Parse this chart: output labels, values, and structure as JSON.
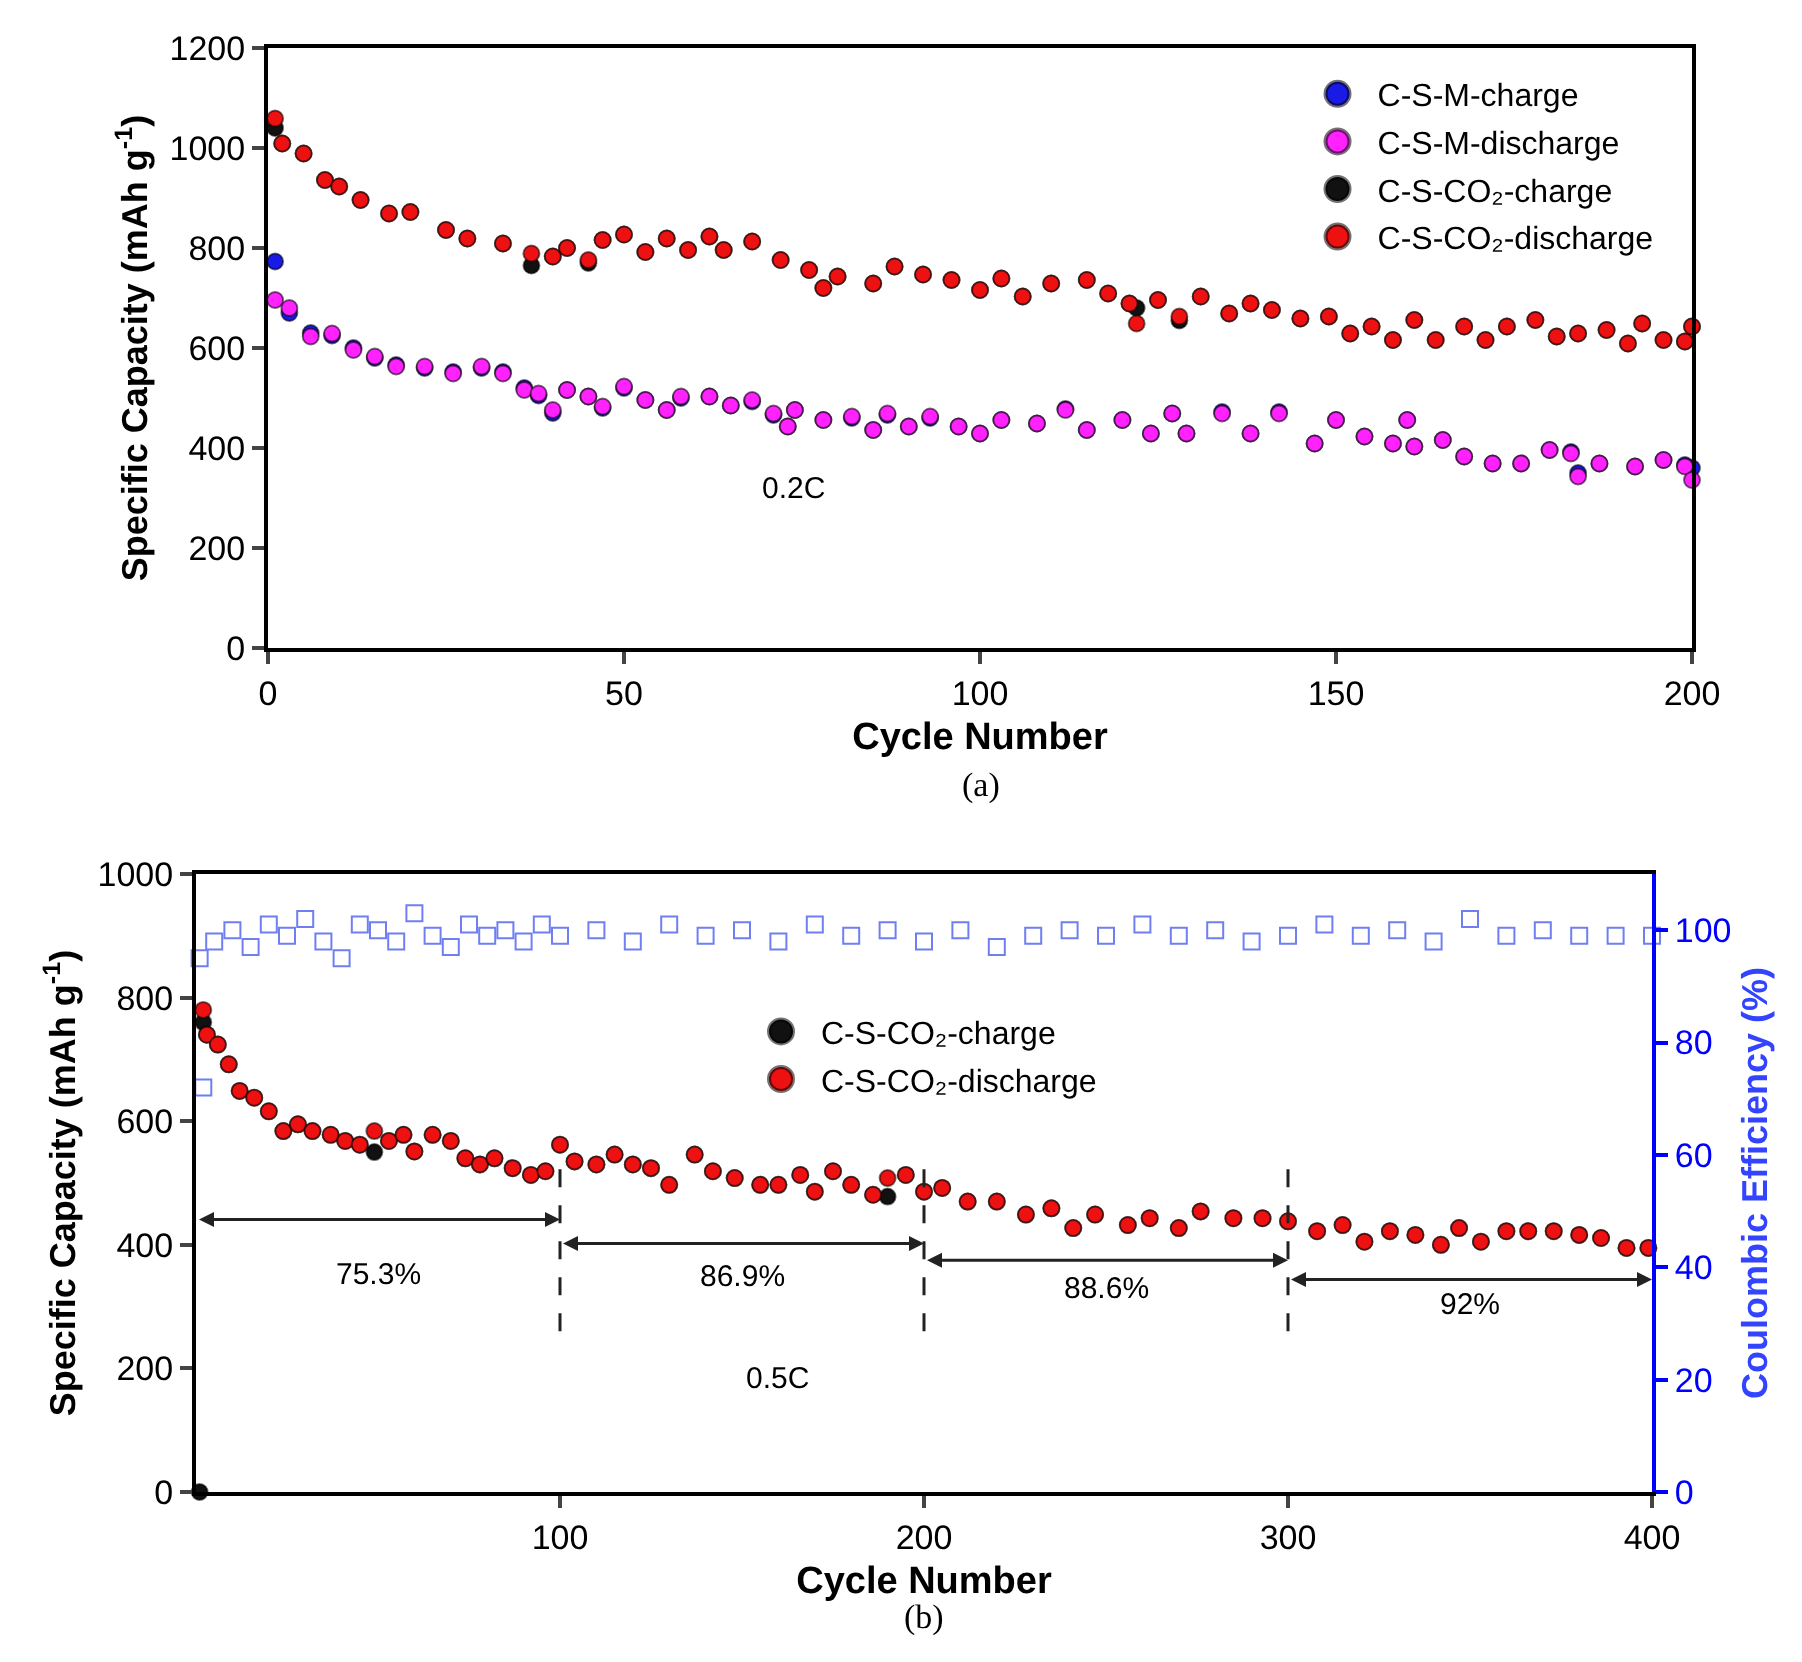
{
  "chart_data": [
    {
      "type": "scatter",
      "xlabel": "Cycle Number",
      "ylabel": "Specific Capacity (mAh g$^{-1}$)",
      "xlim": [
        0,
        200
      ],
      "xticks": [
        0,
        50,
        100,
        150,
        200
      ],
      "ylim": [
        0,
        1200
      ],
      "yticks": [
        0,
        200,
        400,
        600,
        800,
        1000,
        1200
      ],
      "grid": false,
      "legend": "top right",
      "marker": "circle",
      "annotations": [
        "0.2C",
        "(a)"
      ],
      "series": [
        {
          "name": "C-S-M-charge",
          "color": "#1a1ae6",
          "x": [
            1,
            3,
            6,
            9,
            12,
            15,
            18,
            22,
            26,
            30,
            33,
            36,
            38,
            40,
            42,
            45,
            47,
            50,
            53,
            56,
            58,
            62,
            65,
            68,
            71,
            73,
            74,
            78,
            82,
            85,
            87,
            90,
            93,
            97,
            100,
            103,
            108,
            112,
            115,
            120,
            124,
            127,
            129,
            134,
            138,
            142,
            147,
            150,
            154,
            158,
            160,
            161,
            165,
            168,
            172,
            176,
            180,
            183,
            184,
            187,
            192,
            196,
            199,
            200
          ],
          "values": [
            773,
            670,
            630,
            625,
            600,
            580,
            566,
            560,
            552,
            560,
            552,
            520,
            505,
            470,
            516,
            503,
            480,
            520,
            496,
            476,
            500,
            503,
            485,
            493,
            466,
            443,
            476,
            456,
            460,
            436,
            466,
            443,
            460,
            443,
            429,
            456,
            449,
            478,
            436,
            456,
            429,
            469,
            429,
            472,
            429,
            472,
            409,
            456,
            423,
            409,
            456,
            403,
            416,
            383,
            369,
            369,
            396,
            392,
            350,
            369,
            363,
            376,
            366,
            360
          ]
        },
        {
          "name": "C-S-M-discharge",
          "color": "#ff22ff",
          "x": [
            1,
            3,
            6,
            9,
            12,
            15,
            18,
            22,
            26,
            30,
            33,
            36,
            38,
            40,
            42,
            45,
            47,
            50,
            53,
            56,
            58,
            62,
            65,
            68,
            71,
            73,
            74,
            78,
            82,
            85,
            87,
            90,
            93,
            97,
            100,
            103,
            108,
            112,
            115,
            120,
            124,
            127,
            129,
            134,
            138,
            142,
            147,
            150,
            154,
            158,
            160,
            161,
            165,
            168,
            172,
            176,
            180,
            183,
            184,
            187,
            192,
            196,
            199,
            200
          ],
          "values": [
            696,
            680,
            623,
            629,
            596,
            583,
            563,
            563,
            549,
            563,
            549,
            516,
            509,
            476,
            516,
            503,
            483,
            523,
            496,
            476,
            503,
            503,
            485,
            496,
            469,
            443,
            476,
            456,
            463,
            436,
            469,
            443,
            463,
            443,
            429,
            456,
            449,
            476,
            436,
            456,
            429,
            469,
            429,
            469,
            429,
            469,
            409,
            456,
            423,
            409,
            456,
            403,
            416,
            383,
            369,
            369,
            396,
            389,
            343,
            369,
            363,
            376,
            363,
            336
          ]
        },
        {
          "name": "C-S-CO₂-charge",
          "color": "#111111",
          "x": [
            1,
            2,
            5,
            8,
            10,
            13,
            17,
            20,
            25,
            28,
            33,
            37,
            40,
            42,
            45,
            47,
            50,
            53,
            56,
            59,
            62,
            64,
            68,
            72,
            76,
            78,
            80,
            85,
            88,
            92,
            96,
            100,
            103,
            106,
            110,
            115,
            118,
            121,
            122,
            125,
            128,
            131,
            135,
            138,
            141,
            145,
            149,
            152,
            155,
            158,
            161,
            164,
            168,
            171,
            174,
            178,
            181,
            184,
            188,
            191,
            193,
            196,
            199,
            200
          ],
          "values": [
            1040,
            1009,
            989,
            936,
            923,
            896,
            869,
            872,
            836,
            819,
            809,
            765,
            783,
            800,
            770,
            816,
            827,
            792,
            819,
            796,
            823,
            796,
            813,
            776,
            756,
            720,
            743,
            729,
            763,
            747,
            736,
            716,
            739,
            703,
            729,
            736,
            709,
            689,
            680,
            696,
            655,
            703,
            669,
            689,
            676,
            659,
            663,
            629,
            643,
            616,
            656,
            616,
            643,
            616,
            643,
            656,
            623,
            629,
            636,
            609,
            649,
            616,
            613,
            643
          ]
        },
        {
          "name": "C-S-CO₂-discharge",
          "color": "#ee1111",
          "x": [
            1,
            2,
            5,
            8,
            10,
            13,
            17,
            20,
            25,
            28,
            33,
            37,
            40,
            42,
            45,
            47,
            50,
            53,
            56,
            59,
            62,
            64,
            68,
            72,
            76,
            78,
            80,
            85,
            88,
            92,
            96,
            100,
            103,
            106,
            110,
            115,
            118,
            121,
            122,
            125,
            128,
            131,
            135,
            138,
            141,
            145,
            149,
            152,
            155,
            158,
            161,
            164,
            168,
            171,
            174,
            178,
            181,
            184,
            188,
            191,
            193,
            196,
            199,
            200
          ],
          "values": [
            1059,
            1009,
            989,
            936,
            923,
            896,
            869,
            872,
            836,
            819,
            809,
            789,
            783,
            800,
            776,
            816,
            827,
            792,
            819,
            796,
            823,
            796,
            813,
            776,
            756,
            720,
            743,
            729,
            763,
            747,
            736,
            716,
            739,
            703,
            729,
            736,
            709,
            689,
            649,
            696,
            663,
            703,
            669,
            689,
            676,
            659,
            663,
            629,
            643,
            616,
            656,
            616,
            643,
            616,
            643,
            656,
            623,
            629,
            636,
            609,
            649,
            616,
            613,
            643
          ]
        }
      ]
    },
    {
      "type": "scatter",
      "xlabel": "Cycle Number",
      "ylabel": "Specific Capacity (mAh g$^{-1}$)",
      "y2label": "Coulombic Efficiency (%)",
      "xlim": [
        0,
        400
      ],
      "xticks": [
        100,
        200,
        300,
        400
      ],
      "ylim": [
        0,
        1000
      ],
      "yticks": [
        0,
        200,
        400,
        600,
        800,
        1000
      ],
      "y2lim": [
        0,
        110
      ],
      "y2ticks": [
        0,
        20,
        40,
        60,
        80,
        100
      ],
      "grid": false,
      "legend": "top",
      "marker": "circle",
      "ref_lines": [
        {
          "axis": "x",
          "value": 100,
          "line_style": "dashed",
          "color": "#222222"
        },
        {
          "axis": "x",
          "value": 200,
          "line_style": "dashed",
          "color": "#222222"
        },
        {
          "axis": "x",
          "value": 300,
          "line_style": "dashed",
          "color": "#222222"
        }
      ],
      "annotations": [
        "0.5C",
        "(b)",
        "75.3%",
        "86.9%",
        "88.6%",
        "92%"
      ],
      "series": [
        {
          "axis": "y2",
          "color": "#6f7ff2",
          "marker": "square",
          "x": [
            1,
            2,
            5,
            10,
            15,
            20,
            25,
            30,
            35,
            40,
            45,
            50,
            55,
            60,
            65,
            70,
            75,
            80,
            85,
            90,
            95,
            100,
            110,
            120,
            130,
            140,
            150,
            160,
            170,
            180,
            190,
            200,
            210,
            220,
            230,
            240,
            250,
            260,
            270,
            280,
            290,
            300,
            310,
            320,
            330,
            340,
            350,
            360,
            370,
            380,
            390,
            400
          ],
          "values": [
            95,
            72,
            98,
            100,
            97,
            101,
            99,
            102,
            98,
            95,
            101,
            100,
            98,
            103,
            99,
            97,
            101,
            99,
            100,
            98,
            101,
            99,
            100,
            98,
            101,
            99,
            100,
            98,
            101,
            99,
            100,
            98,
            100,
            97,
            99,
            100,
            99,
            101,
            99,
            100,
            98,
            99,
            101,
            99,
            100,
            98,
            102,
            99,
            100,
            99,
            99,
            99
          ]
        },
        {
          "name": "C-S-CO₂-charge",
          "color": "#111111",
          "x": [
            1,
            2,
            3,
            6,
            9,
            12,
            16,
            20,
            24,
            28,
            32,
            37,
            41,
            45,
            49,
            53,
            57,
            60,
            65,
            70,
            74,
            78,
            82,
            87,
            92,
            96,
            100,
            104,
            110,
            115,
            120,
            125,
            130,
            137,
            142,
            148,
            155,
            160,
            166,
            170,
            175,
            180,
            186,
            190,
            195,
            200,
            205,
            212,
            220,
            228,
            235,
            241,
            247,
            256,
            262,
            270,
            276,
            285,
            293,
            300,
            308,
            315,
            321,
            328,
            335,
            342,
            347,
            353,
            360,
            366,
            373,
            380,
            386,
            393,
            399
          ],
          "values": [
            0,
            760,
            740,
            724,
            692,
            649,
            638,
            616,
            584,
            595,
            584,
            578,
            568,
            562,
            550,
            568,
            578,
            551,
            578,
            568,
            540,
            530,
            540,
            524,
            513,
            519,
            562,
            535,
            530,
            546,
            530,
            524,
            497,
            546,
            519,
            508,
            497,
            497,
            513,
            486,
            519,
            497,
            481,
            478,
            513,
            486,
            492,
            470,
            470,
            449,
            459,
            427,
            449,
            432,
            443,
            427,
            454,
            443,
            443,
            438,
            422,
            432,
            405,
            422,
            416,
            400,
            427,
            405,
            422,
            422,
            422,
            416,
            411,
            395,
            395
          ]
        },
        {
          "name": "C-S-CO₂-discharge",
          "color": "#ee1111",
          "x": [
            2,
            3,
            6,
            9,
            12,
            16,
            20,
            24,
            28,
            32,
            37,
            41,
            45,
            49,
            53,
            57,
            60,
            65,
            70,
            74,
            78,
            82,
            87,
            92,
            96,
            100,
            104,
            110,
            115,
            120,
            125,
            130,
            137,
            142,
            148,
            155,
            160,
            166,
            170,
            175,
            180,
            186,
            190,
            195,
            200,
            205,
            212,
            220,
            228,
            235,
            241,
            247,
            256,
            262,
            270,
            276,
            285,
            293,
            300,
            308,
            315,
            321,
            328,
            335,
            342,
            347,
            353,
            360,
            366,
            373,
            380,
            386,
            393,
            399
          ],
          "values": [
            780,
            740,
            724,
            692,
            649,
            638,
            616,
            584,
            595,
            584,
            578,
            568,
            562,
            584,
            568,
            578,
            551,
            578,
            568,
            540,
            530,
            540,
            524,
            513,
            519,
            562,
            535,
            530,
            546,
            530,
            524,
            497,
            546,
            519,
            508,
            497,
            497,
            513,
            486,
            519,
            497,
            481,
            508,
            513,
            486,
            492,
            470,
            470,
            449,
            459,
            427,
            449,
            432,
            443,
            427,
            454,
            443,
            443,
            438,
            422,
            432,
            405,
            422,
            416,
            400,
            427,
            405,
            422,
            422,
            422,
            416,
            411,
            395,
            395
          ]
        }
      ]
    }
  ]
}
